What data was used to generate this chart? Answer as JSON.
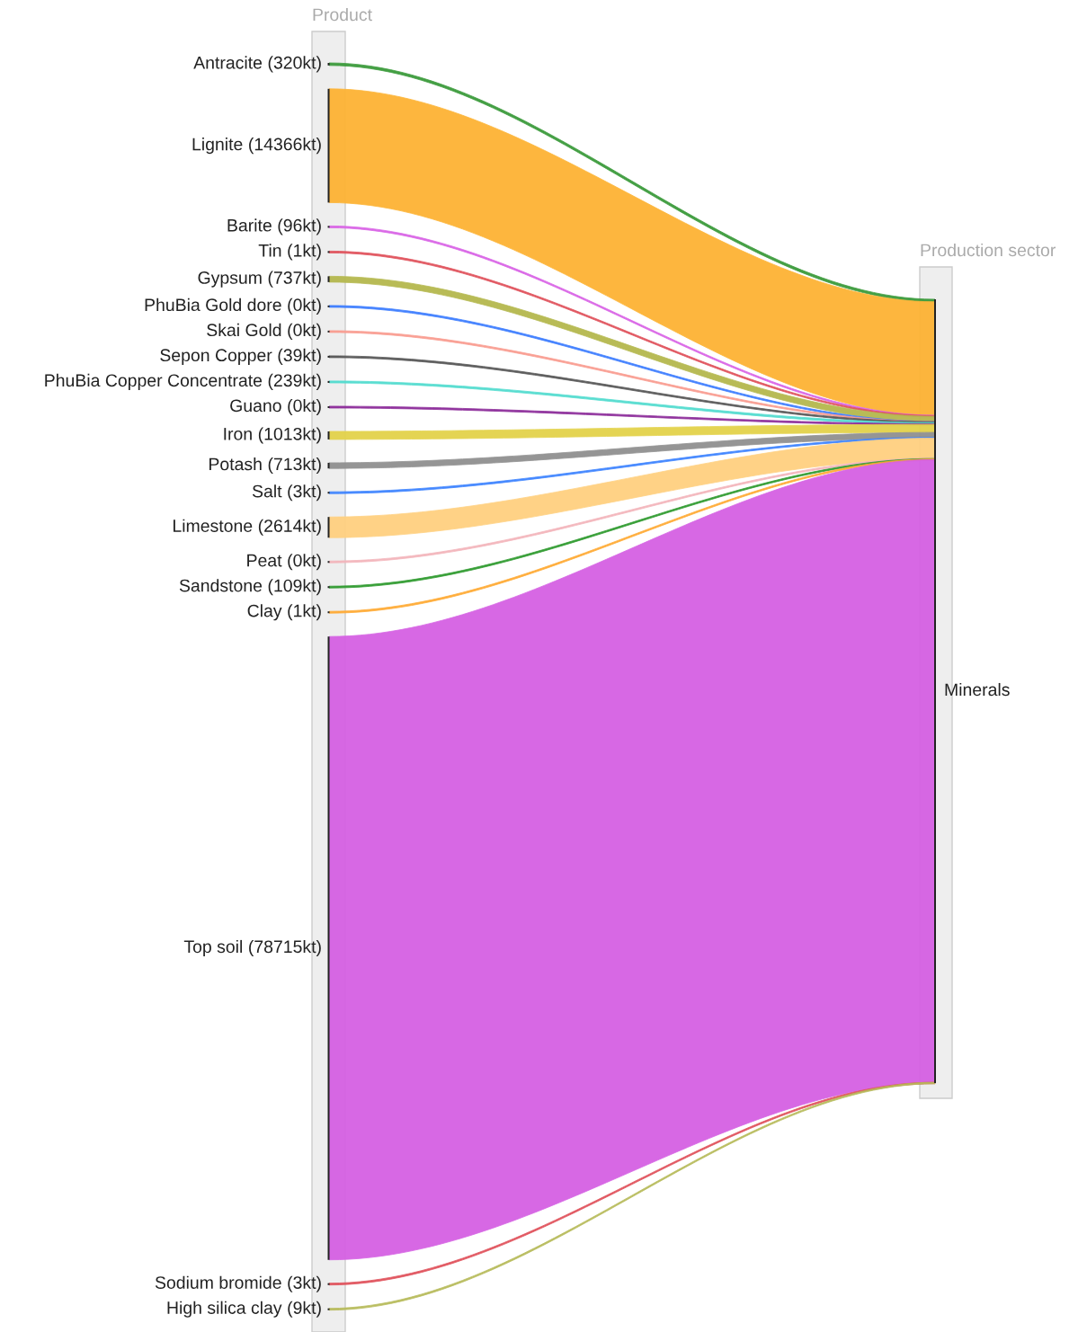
{
  "chart_data": {
    "type": "other",
    "categories": [
      "Antracite",
      "Lignite",
      "Barite",
      "Tin",
      "Gypsum",
      "PhuBia Gold dore",
      "Skai Gold",
      "Sepon Copper",
      "PhuBia Copper Concentrate",
      "Guano",
      "Iron",
      "Potash",
      "Salt",
      "Limestone",
      "Peat",
      "Sandstone",
      "Clay",
      "Top soil",
      "Sodium bromide",
      "High silica clay"
    ],
    "value_labels": [
      "(320kt)",
      "(14366kt)",
      "(96kt)",
      "(1kt)",
      "(737kt)",
      "(0kt)",
      "(0kt)",
      "(39kt)",
      "(239kt)",
      "(0kt)",
      "(1013kt)",
      "(713kt)",
      "(3kt)",
      "(2614kt)",
      "(0kt)",
      "(109kt)",
      "(1kt)",
      "(78715kt)",
      "(3kt)",
      "(9kt)"
    ],
    "values": [
      320,
      14366,
      96,
      1,
      737,
      0,
      0,
      39,
      239,
      0,
      1013,
      713,
      3,
      2614,
      0,
      109,
      1,
      78715,
      3,
      9
    ],
    "colors": [
      "#3a9a3a",
      "#fdb334",
      "#d963e6",
      "#e0505a",
      "#b5b84e",
      "#3b7cff",
      "#f99b8f",
      "#555555",
      "#52dccf",
      "#8b2a99",
      "#e3d24a",
      "#909090",
      "#3b82ff",
      "#ffd080",
      "#f3b5bb",
      "#2e9a2e",
      "#ffaa33",
      "#d560e3",
      "#e0505a",
      "#b7bb5a"
    ],
    "annotations": [
      "Product",
      "Production sector",
      "Minerals"
    ]
  }
}
